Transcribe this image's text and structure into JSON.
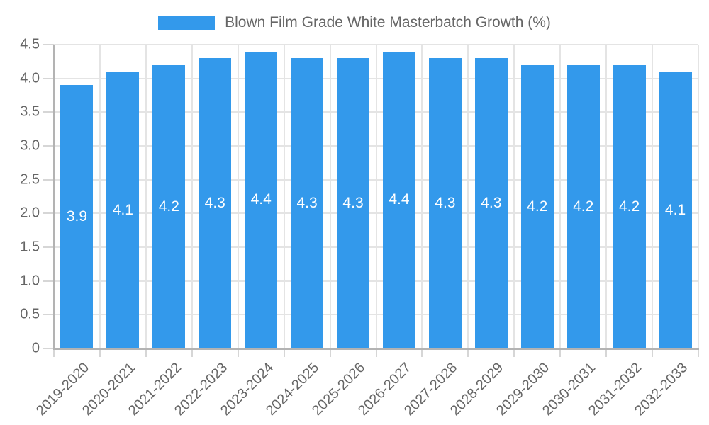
{
  "chart_data": {
    "type": "bar",
    "title": "Blown Film Grade White Masterbatch Growth (%)",
    "categories": [
      "2019-2020",
      "2020-2021",
      "2021-2022",
      "2022-2023",
      "2023-2024",
      "2024-2025",
      "2025-2026",
      "2026-2027",
      "2027-2028",
      "2028-2029",
      "2029-2030",
      "2030-2031",
      "2031-2032",
      "2032-2033"
    ],
    "values": [
      3.9,
      4.1,
      4.2,
      4.3,
      4.4,
      4.3,
      4.3,
      4.4,
      4.3,
      4.3,
      4.2,
      4.2,
      4.2,
      4.1
    ],
    "bar_labels": [
      "3.9",
      "4.1",
      "4.2",
      "4.3",
      "4.4",
      "4.3",
      "4.3",
      "4.4",
      "4.3",
      "4.3",
      "4.2",
      "4.2",
      "4.2",
      "4.1"
    ],
    "xlabel": "",
    "ylabel": "",
    "ylim": [
      0,
      4.5
    ],
    "ytick_values": [
      0,
      0.5,
      1.0,
      1.5,
      2.0,
      2.5,
      3.0,
      3.5,
      4.0,
      4.5
    ],
    "ytick_labels": [
      "0",
      "0.5",
      "1.0",
      "1.5",
      "2.0",
      "2.5",
      "3.0",
      "3.5",
      "4.0",
      "4.5"
    ],
    "grid": true,
    "legend_position": "top",
    "colors": {
      "bar": "#3399EB",
      "grid": "#E4E4E4",
      "tick_mark": "#D6D6D6",
      "axis_line": "#B3B3B3",
      "axis_text": "#666666",
      "legend_text": "#666666",
      "value_label": "#FFFFFF",
      "background": "#FFFFFF"
    }
  }
}
